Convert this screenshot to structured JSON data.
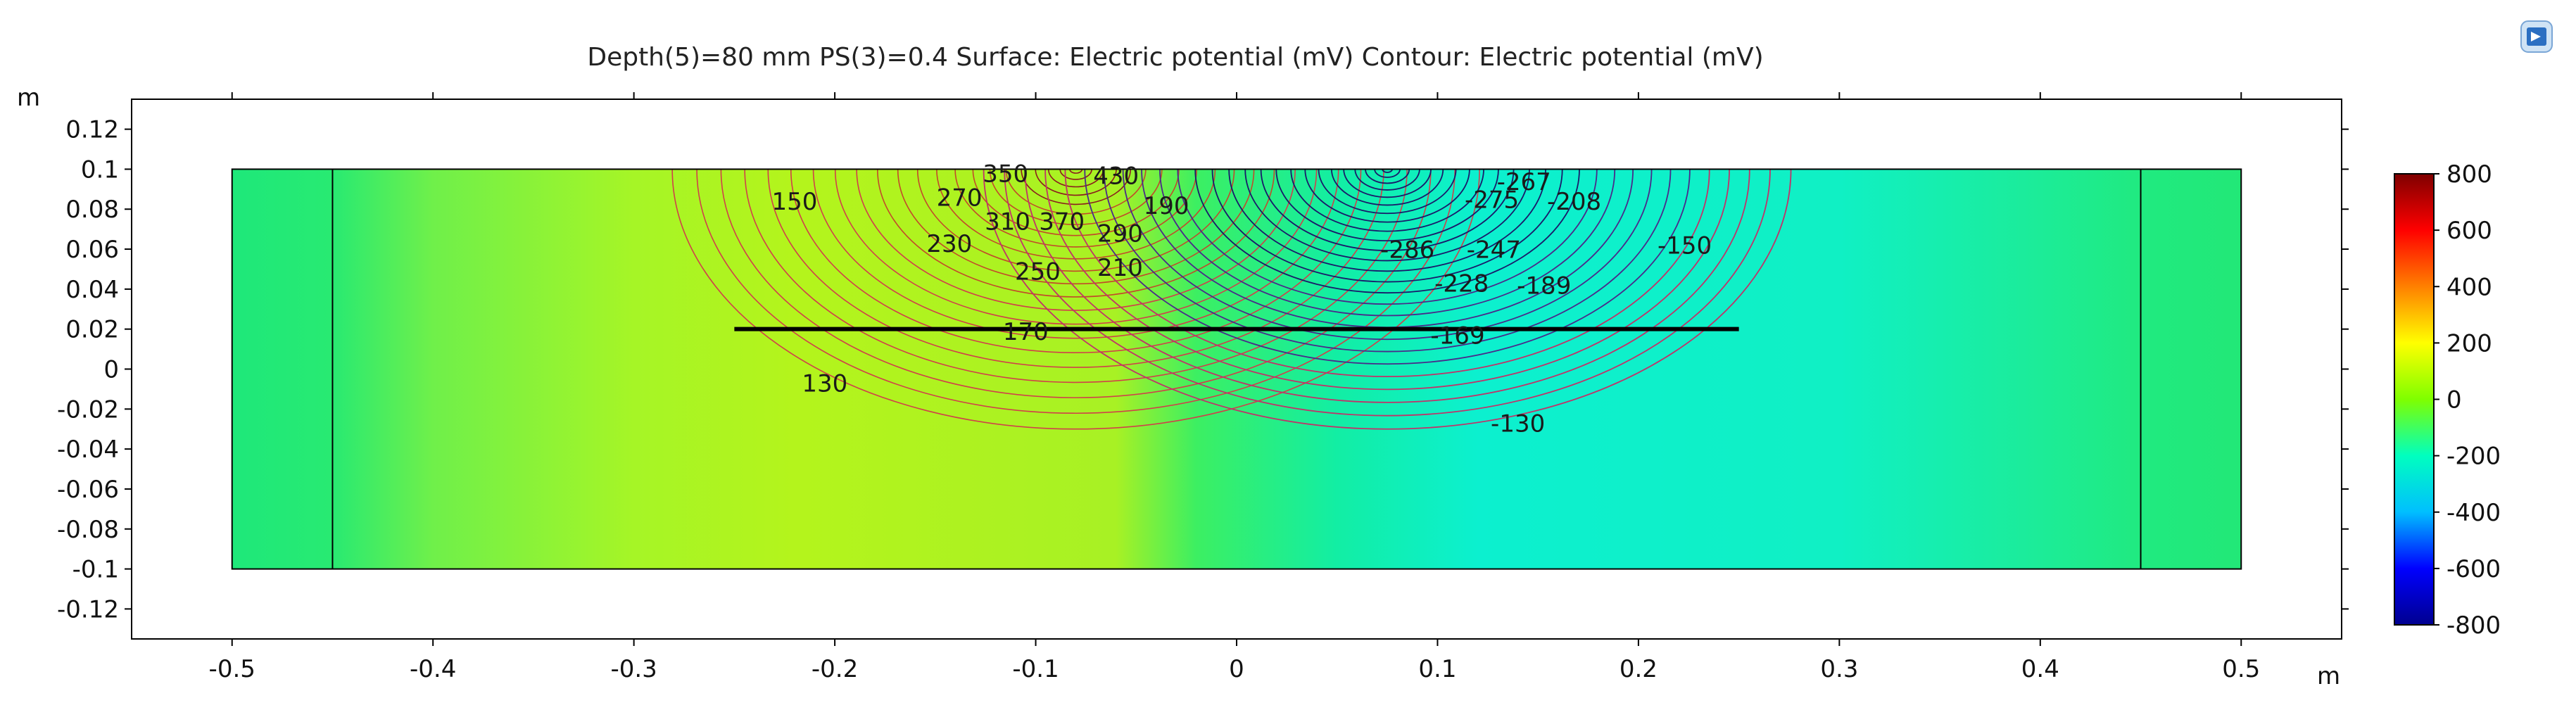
{
  "title": "Depth(5)=80 mm PS(3)=0.4   Surface: Electric potential (mV)  Contour: Electric potential (mV)",
  "icon": "export-image-icon",
  "chart_data": {
    "type": "heatmap",
    "title": "Depth(5)=80 mm PS(3)=0.4   Surface: Electric potential (mV)  Contour: Electric potential (mV)",
    "x_unit": "m",
    "y_unit": "m",
    "xlim": [
      -0.55,
      0.55
    ],
    "ylim": [
      -0.135,
      0.135
    ],
    "x_ticks": [
      -0.5,
      -0.4,
      -0.3,
      -0.2,
      -0.1,
      0,
      0.1,
      0.2,
      0.3,
      0.4,
      0.5
    ],
    "x_tick_labels": [
      "-0.5",
      "-0.4",
      "-0.3",
      "-0.2",
      "-0.1",
      "0",
      "0.1",
      "0.2",
      "0.3",
      "0.4",
      "0.5"
    ],
    "y_ticks": [
      0.12,
      0.1,
      0.08,
      0.06,
      0.04,
      0.02,
      0,
      -0.02,
      -0.04,
      -0.06,
      -0.08,
      -0.1,
      -0.12
    ],
    "y_tick_labels": [
      "0.12",
      "0.1",
      "0.08",
      "0.06",
      "0.04",
      "0.02",
      "0",
      "-0.02",
      "-0.04",
      "-0.06",
      "-0.08",
      "-0.1",
      "-0.12"
    ],
    "domain": {
      "x": [
        -0.5,
        0.5
      ],
      "y": [
        -0.1,
        0.1
      ]
    },
    "inner_boundaries_x": [
      -0.45,
      0.45
    ],
    "electrode_line": {
      "x": [
        -0.25,
        0.25
      ],
      "y": 0.02
    },
    "sources": [
      {
        "sign": "positive",
        "x": -0.08,
        "y": 0.1,
        "peak": 800
      },
      {
        "sign": "negative",
        "x": 0.075,
        "y": 0.1,
        "peak": -800
      }
    ],
    "colorbar": {
      "range": [
        -800,
        800
      ],
      "ticks": [
        800,
        600,
        400,
        200,
        0,
        -200,
        -400,
        -600,
        -800
      ],
      "tick_labels": [
        "800",
        "600",
        "400",
        "200",
        "0",
        "-200",
        "-400",
        "-600",
        "-800"
      ],
      "colormap": [
        "#00008f",
        "#0000ff",
        "#00bfff",
        "#00ffbf",
        "#7fff00",
        "#ffff00",
        "#ff8000",
        "#ff0000",
        "#7f0000"
      ]
    },
    "contour_labels": [
      {
        "text": "150",
        "x": -0.22,
        "y": 0.083
      },
      {
        "text": "270",
        "x": -0.138,
        "y": 0.085
      },
      {
        "text": "350",
        "x": -0.115,
        "y": 0.097
      },
      {
        "text": "230",
        "x": -0.143,
        "y": 0.062
      },
      {
        "text": "310",
        "x": -0.114,
        "y": 0.073
      },
      {
        "text": "370",
        "x": -0.087,
        "y": 0.073
      },
      {
        "text": "290",
        "x": -0.058,
        "y": 0.067
      },
      {
        "text": "190",
        "x": -0.035,
        "y": 0.081
      },
      {
        "text": "250",
        "x": -0.099,
        "y": 0.048
      },
      {
        "text": "210",
        "x": -0.058,
        "y": 0.05
      },
      {
        "text": "430",
        "x": -0.06,
        "y": 0.096
      },
      {
        "text": "170",
        "x": -0.105,
        "y": 0.018
      },
      {
        "text": "130",
        "x": -0.205,
        "y": -0.008
      },
      {
        "text": "-267",
        "x": 0.143,
        "y": 0.093
      },
      {
        "text": "-208",
        "x": 0.168,
        "y": 0.083
      },
      {
        "text": "-275",
        "x": 0.127,
        "y": 0.084
      },
      {
        "text": "-286",
        "x": 0.085,
        "y": 0.059
      },
      {
        "text": "-247",
        "x": 0.128,
        "y": 0.059
      },
      {
        "text": "-150",
        "x": 0.223,
        "y": 0.061
      },
      {
        "text": "-228",
        "x": 0.112,
        "y": 0.042
      },
      {
        "text": "-189",
        "x": 0.153,
        "y": 0.041
      },
      {
        "text": "-169",
        "x": 0.11,
        "y": 0.016
      },
      {
        "text": "-130",
        "x": 0.14,
        "y": -0.028
      }
    ]
  }
}
